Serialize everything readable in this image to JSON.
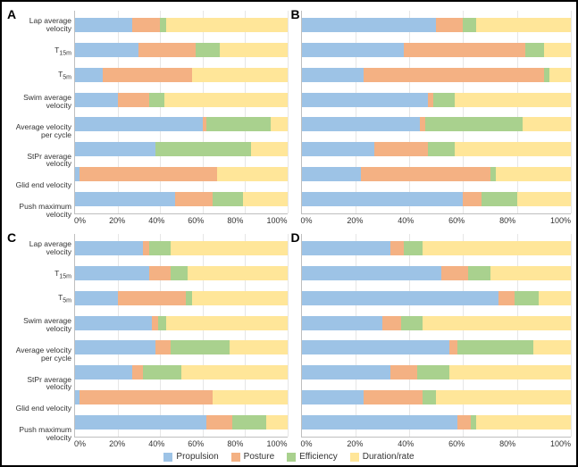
{
  "figure": {
    "type": "stacked-bar-panels",
    "background_color": "#ffffff",
    "border_color": "#000000",
    "grid_color": "#e6e6e6",
    "axis_color": "#bfbfbf",
    "text_color": "#333333",
    "label_fontsize_pt": 8.5,
    "tick_fontsize_pt": 9,
    "panel_letter_fontsize_pt": 14
  },
  "series": {
    "names": [
      "Propulsion",
      "Posture",
      "Efficiency",
      "Duration/rate"
    ],
    "colors": [
      "#9dc3e6",
      "#f4b183",
      "#a9d18e",
      "#ffe699"
    ]
  },
  "categories": [
    "Lap average velocity",
    "T<sub>15m</sub>",
    "T<sub>5m</sub>",
    "Swim average velocity",
    "Average velocity per cycle",
    "StPr average velocity",
    "Glid end velocity",
    "Push maximum velocity"
  ],
  "xaxis": {
    "ticks": [
      "0%",
      "20%",
      "40%",
      "60%",
      "80%",
      "100%"
    ],
    "lim": [
      0,
      100
    ],
    "tick_step": 20,
    "unit": "%"
  },
  "panels": {
    "A": {
      "letter": "A",
      "show_ylabels": true,
      "data": [
        [
          27,
          13,
          3,
          57
        ],
        [
          30,
          27,
          11,
          32
        ],
        [
          13,
          42,
          0,
          45
        ],
        [
          20,
          15,
          7,
          58
        ],
        [
          60,
          2,
          30,
          8
        ],
        [
          38,
          0,
          45,
          17
        ],
        [
          2,
          65,
          0,
          33
        ],
        [
          47,
          18,
          14,
          21
        ]
      ]
    },
    "B": {
      "letter": "B",
      "show_ylabels": false,
      "data": [
        [
          50,
          10,
          5,
          35
        ],
        [
          38,
          45,
          7,
          10
        ],
        [
          23,
          67,
          2,
          8
        ],
        [
          47,
          2,
          8,
          43
        ],
        [
          44,
          2,
          36,
          18
        ],
        [
          27,
          20,
          10,
          43
        ],
        [
          22,
          48,
          2,
          28
        ],
        [
          60,
          7,
          13,
          20
        ]
      ]
    },
    "C": {
      "letter": "C",
      "show_ylabels": true,
      "data": [
        [
          32,
          3,
          10,
          55
        ],
        [
          35,
          10,
          8,
          47
        ],
        [
          20,
          32,
          3,
          45
        ],
        [
          36,
          3,
          4,
          57
        ],
        [
          38,
          7,
          28,
          27
        ],
        [
          27,
          5,
          18,
          50
        ],
        [
          2,
          63,
          0,
          35
        ],
        [
          62,
          12,
          16,
          10
        ]
      ]
    },
    "D": {
      "letter": "D",
      "show_ylabels": false,
      "data": [
        [
          33,
          5,
          7,
          55
        ],
        [
          52,
          10,
          8,
          30
        ],
        [
          73,
          6,
          9,
          12
        ],
        [
          30,
          7,
          8,
          55
        ],
        [
          55,
          3,
          28,
          14
        ],
        [
          33,
          10,
          12,
          45
        ],
        [
          23,
          22,
          5,
          50
        ],
        [
          58,
          5,
          2,
          35
        ]
      ]
    }
  }
}
